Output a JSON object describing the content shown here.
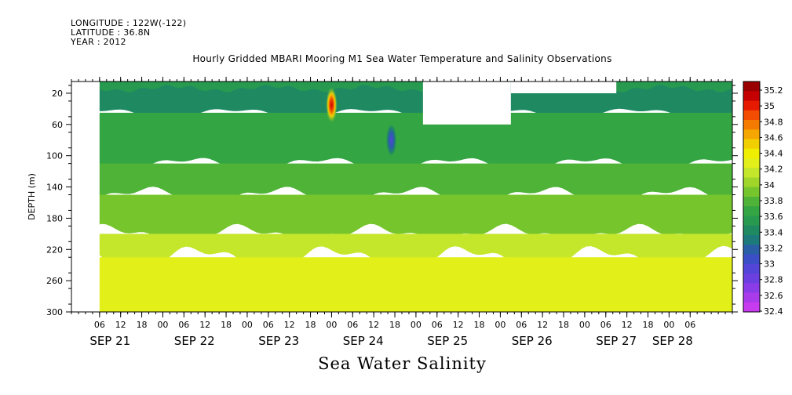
{
  "header": {
    "longitude": "LONGITUDE : 122W(-122)",
    "latitude": "LATITUDE : 36.8N",
    "year": "YEAR : 2012"
  },
  "bottom_label": "Sea Water Salinity",
  "chart_data": {
    "type": "heatmap",
    "title": "Hourly Gridded MBARI Mooring M1 Sea Water Temperature and Salinity Observations",
    "xlabel": "",
    "ylabel": "DEPTH (m)",
    "x_axis": {
      "start_hour": 0,
      "end_hour": 186,
      "hour_tick_labels": [
        "06",
        "12",
        "18",
        "00",
        "06",
        "12",
        "18",
        "00",
        "06",
        "12",
        "18",
        "00",
        "06",
        "12",
        "18",
        "00",
        "06",
        "12",
        "18",
        "00",
        "06",
        "12",
        "18",
        "00",
        "06",
        "12",
        "18",
        "00",
        "06"
      ],
      "hour_tick_positions": [
        6,
        12,
        18,
        24,
        30,
        36,
        42,
        48,
        54,
        60,
        66,
        72,
        78,
        84,
        90,
        96,
        102,
        108,
        114,
        120,
        126,
        132,
        138,
        144,
        150,
        156,
        162,
        168,
        174
      ],
      "day_labels": [
        "SEP 21",
        "SEP 22",
        "SEP 23",
        "SEP 24",
        "SEP 25",
        "SEP 26",
        "SEP 27",
        "SEP 28"
      ],
      "day_label_positions": [
        9,
        33,
        57,
        81,
        105,
        129,
        153,
        169
      ]
    },
    "y_axis": {
      "ylim": [
        300,
        5
      ],
      "tick_labels": [
        "20",
        "60",
        "100",
        "140",
        "180",
        "220",
        "260",
        "300"
      ],
      "tick_values": [
        20,
        60,
        100,
        140,
        180,
        220,
        260,
        300
      ]
    },
    "colorbar": {
      "labels": [
        "35.2",
        "35",
        "34.8",
        "34.6",
        "34.4",
        "34.2",
        "34",
        "33.8",
        "33.6",
        "33.4",
        "33.2",
        "33",
        "32.8",
        "32.6",
        "32.4"
      ],
      "colors": [
        "#9b0000",
        "#c40000",
        "#e61a00",
        "#f24d00",
        "#f57a00",
        "#f5a600",
        "#f2cf00",
        "#f0ee00",
        "#e2ef18",
        "#c4e62b",
        "#9fd629",
        "#77c52d",
        "#4fb338",
        "#34a543",
        "#279a4f",
        "#1f8a62",
        "#1c7a7b",
        "#2a5fa5",
        "#3c4ec6",
        "#5245d8",
        "#6b3fe0",
        "#8a3ce8",
        "#a93bea",
        "#c83cf0"
      ]
    },
    "bands": [
      {
        "depth_range": [
          5,
          45
        ],
        "salinity": 33.4
      },
      {
        "depth_range": [
          45,
          110
        ],
        "salinity": 33.6
      },
      {
        "depth_range": [
          110,
          150
        ],
        "salinity": 33.8
      },
      {
        "depth_range": [
          150,
          200
        ],
        "salinity": 33.9
      },
      {
        "depth_range": [
          200,
          230
        ],
        "salinity": 34.1
      },
      {
        "depth_range": [
          230,
          300
        ],
        "salinity": 34.3
      }
    ],
    "anomalies": [
      {
        "time_hour": 72,
        "depth": 35,
        "salinity": 34.9
      },
      {
        "time_hour": 89,
        "depth": 80,
        "salinity": 32.9
      }
    ],
    "missing_regions": [
      {
        "time_range": [
          -2,
          6
        ],
        "depth_range": [
          5,
          300
        ]
      },
      {
        "time_range": [
          98,
          123
        ],
        "depth_range": [
          5,
          60
        ]
      },
      {
        "time_range": [
          123,
          153
        ],
        "depth_range": [
          5,
          20
        ]
      }
    ]
  }
}
